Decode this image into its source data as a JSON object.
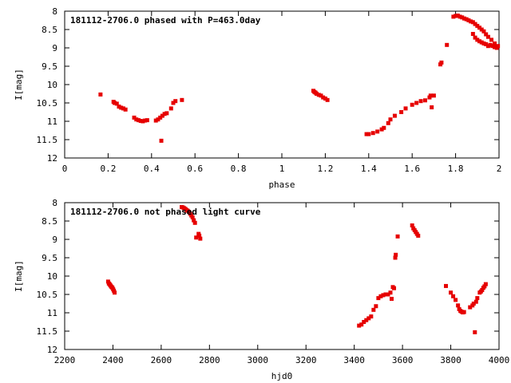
{
  "colors": {
    "points": "#e60000",
    "axis": "#000000",
    "background": "#ffffff"
  },
  "chart_data": [
    {
      "type": "scatter",
      "title": "181112-2706.0 phased with P=463.0day",
      "xlabel": "phase",
      "ylabel": "I[mag]",
      "xlim": [
        0,
        2
      ],
      "ylim": [
        12,
        8
      ],
      "y_inverted": true,
      "grid": false,
      "xticks": [
        "0",
        "0.2",
        "0.4",
        "0.6",
        "0.8",
        "1",
        "1.2",
        "1.4",
        "1.6",
        "1.8",
        "2"
      ],
      "yticks": [
        "8",
        "8.5",
        "9",
        "9.5",
        "10",
        "10.5",
        "11",
        "11.5",
        "12"
      ],
      "series": [
        {
          "x": [
            0.165,
            0.225,
            0.23,
            0.24,
            0.25,
            0.26,
            0.27,
            0.28,
            0.32,
            0.33,
            0.34,
            0.35,
            0.36,
            0.37,
            0.38,
            0.42,
            0.43,
            0.44,
            0.45,
            0.46,
            0.47,
            0.49,
            0.5,
            0.51,
            0.54,
            0.445,
            1.145,
            1.15,
            1.155,
            1.16,
            1.17,
            1.18,
            1.19,
            1.2,
            1.21,
            1.39,
            1.4,
            1.42,
            1.44,
            1.46,
            1.47,
            1.49,
            1.5,
            1.52,
            1.55,
            1.57,
            1.6,
            1.62,
            1.64,
            1.66,
            1.68,
            1.685,
            1.7,
            1.69,
            1.73,
            1.735,
            1.76,
            1.79,
            1.8,
            1.81,
            1.82,
            1.83,
            1.84,
            1.85,
            1.86,
            1.87,
            1.88,
            1.89,
            1.9,
            1.91,
            1.92,
            1.93,
            1.94,
            1.95,
            1.965,
            1.98,
            1.995,
            1.88,
            1.89,
            1.9,
            1.91,
            1.92,
            1.93,
            1.94,
            1.95,
            1.96,
            1.97,
            1.98,
            1.99
          ],
          "y": [
            10.27,
            10.47,
            10.5,
            10.52,
            10.6,
            10.63,
            10.65,
            10.68,
            10.9,
            10.95,
            10.97,
            10.99,
            11.0,
            10.98,
            10.97,
            10.98,
            10.95,
            10.9,
            10.85,
            10.8,
            10.78,
            10.65,
            10.5,
            10.45,
            10.42,
            11.53,
            10.17,
            10.2,
            10.22,
            10.25,
            10.28,
            10.3,
            10.35,
            10.38,
            10.42,
            11.35,
            11.35,
            11.32,
            11.28,
            11.22,
            11.18,
            11.05,
            10.95,
            10.85,
            10.75,
            10.65,
            10.55,
            10.5,
            10.45,
            10.43,
            10.35,
            10.3,
            10.3,
            10.62,
            9.45,
            9.4,
            8.92,
            8.15,
            8.13,
            8.12,
            8.15,
            8.17,
            8.2,
            8.22,
            8.25,
            8.28,
            8.3,
            8.35,
            8.4,
            8.45,
            8.5,
            8.55,
            8.63,
            8.7,
            8.78,
            8.88,
            8.95,
            8.62,
            8.72,
            8.78,
            8.82,
            8.85,
            8.88,
            8.9,
            8.95,
            8.92,
            8.95,
            8.98,
            9.0
          ]
        }
      ]
    },
    {
      "type": "scatter",
      "title": "181112-2706.0 not phased light curve",
      "xlabel": "hjd0",
      "ylabel": "I[mag]",
      "xlim": [
        2200,
        4000
      ],
      "ylim": [
        12,
        8
      ],
      "y_inverted": true,
      "grid": false,
      "xticks": [
        "2200",
        "2400",
        "2600",
        "2800",
        "3000",
        "3200",
        "3400",
        "3600",
        "3800",
        "4000"
      ],
      "yticks": [
        "8",
        "8.5",
        "9",
        "9.5",
        "10",
        "10.5",
        "11",
        "11.5",
        "12"
      ],
      "series": [
        {
          "x": [
            2380,
            2383,
            2386,
            2389,
            2392,
            2395,
            2398,
            2401,
            2404,
            2407,
            2685,
            2690,
            2695,
            2700,
            2705,
            2710,
            2715,
            2720,
            2725,
            2730,
            2735,
            2740,
            2745,
            2755,
            2758,
            2762,
            3420,
            3430,
            3440,
            3450,
            3460,
            3470,
            3480,
            3490,
            3500,
            3510,
            3520,
            3530,
            3540,
            3550,
            3555,
            3560,
            3565,
            3570,
            3572,
            3580,
            3640,
            3645,
            3650,
            3655,
            3660,
            3665,
            3780,
            3800,
            3810,
            3820,
            3830,
            3835,
            3840,
            3845,
            3850,
            3855,
            3880,
            3890,
            3895,
            3900,
            3905,
            3910,
            3920,
            3925,
            3930,
            3935,
            3940,
            3945
          ],
          "y": [
            10.15,
            10.2,
            10.22,
            10.25,
            10.28,
            10.3,
            10.32,
            10.36,
            10.4,
            10.45,
            8.12,
            8.13,
            8.15,
            8.17,
            8.2,
            8.22,
            8.25,
            8.3,
            8.35,
            8.4,
            8.48,
            8.55,
            8.95,
            8.85,
            8.9,
            8.98,
            11.35,
            11.32,
            11.25,
            11.2,
            11.15,
            11.1,
            10.92,
            10.82,
            10.6,
            10.55,
            10.52,
            10.5,
            10.5,
            10.45,
            10.62,
            10.3,
            10.33,
            9.5,
            9.42,
            8.92,
            8.62,
            8.7,
            8.75,
            8.8,
            8.85,
            8.9,
            10.27,
            10.45,
            10.55,
            10.65,
            10.8,
            10.9,
            10.95,
            10.97,
            10.99,
            10.98,
            10.85,
            10.8,
            10.75,
            11.53,
            10.7,
            10.6,
            10.45,
            10.42,
            10.38,
            10.32,
            10.28,
            10.22
          ]
        }
      ]
    }
  ]
}
